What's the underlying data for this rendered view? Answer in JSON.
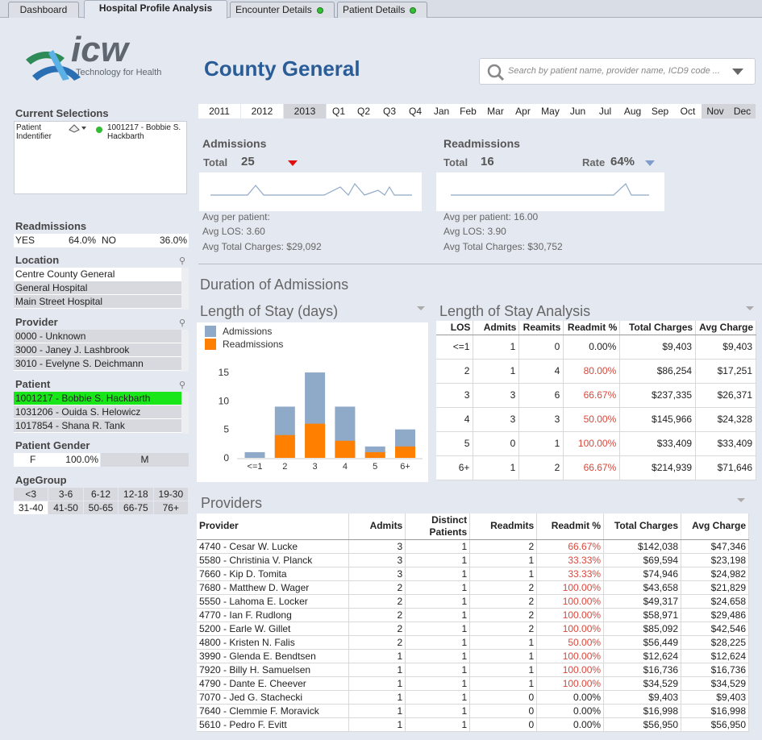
{
  "tabs": [
    {
      "label": "Dashboard",
      "dot": false
    },
    {
      "label": "Hospital Profile Analysis",
      "dot": false,
      "active": true
    },
    {
      "label": "Encounter Details",
      "dot": true
    },
    {
      "label": "Patient Details",
      "dot": true
    }
  ],
  "logo": {
    "brand": "icw",
    "tagline": "Technology for Health"
  },
  "title": "County General",
  "search": {
    "placeholder": "Search by patient name, provider name, ICD9 code ..."
  },
  "current_selections": {
    "label": "Current Selections",
    "field": "Patient Indentifier",
    "value": "1001217 - Bobbie S. Hackbarth"
  },
  "readmissions_filter": {
    "label": "Readmissions",
    "yes": "YES",
    "yes_pct": "64.0%",
    "no": "NO",
    "no_pct": "36.0%"
  },
  "location": {
    "label": "Location",
    "items": [
      "Centre County General",
      "General Hospital",
      "Main Street Hospital"
    ]
  },
  "provider": {
    "label": "Provider",
    "items": [
      "0000 - Unknown",
      "3000 - Janey J. Lashbrook",
      "3010 - Evelyne S. Deichmann"
    ]
  },
  "patient": {
    "label": "Patient",
    "items": [
      "1001217 - Bobbie S. Hackbarth",
      "1031206 - Ouida S. Helowicz",
      "1017854 - Shana R. Tank"
    ]
  },
  "gender": {
    "label": "Patient Gender",
    "f": "F",
    "f_pct": "100.0%",
    "m": "M"
  },
  "agegroup": {
    "label": "AgeGroup",
    "row1": [
      "<3",
      "3-6",
      "6-12",
      "12-18",
      "19-30"
    ],
    "row2": [
      "31-40",
      "41-50",
      "50-65",
      "66-75",
      "76+"
    ]
  },
  "years": [
    "2011",
    "2012",
    "2013"
  ],
  "months": [
    "Q1",
    "Q2",
    "Q3",
    "Q4",
    "Jan",
    "Feb",
    "Mar",
    "Apr",
    "May",
    "Jun",
    "Jul",
    "Aug",
    "Sep",
    "Oct",
    "Nov",
    "Dec"
  ],
  "admissions": {
    "title": "Admissions",
    "total_label": "Total",
    "total": "25",
    "avg_per_patient": "Avg per patient:",
    "avg_los": "Avg LOS: 3.60",
    "avg_charges": "Avg Total Charges: $29,092"
  },
  "readmissions": {
    "title": "Readmissions",
    "total_label": "Total",
    "total": "16",
    "rate_label": "Rate",
    "rate": "64%",
    "avg_per_patient": "Avg per patient: 16.00",
    "avg_los": "Avg LOS: 3.90",
    "avg_charges": "Avg Total Charges: $30,752"
  },
  "duration_title": "Duration of Admissions",
  "los_chart_title": "Length of Stay (days)",
  "los_analysis_title": "Length of Stay Analysis",
  "chart_data": {
    "type": "bar",
    "categories": [
      "<=1",
      "2",
      "3",
      "4",
      "5",
      "6+"
    ],
    "series": [
      {
        "name": "Admissions",
        "values": [
          1,
          5,
          9,
          6,
          1,
          3
        ],
        "color": "#8fa9c8"
      },
      {
        "name": "Readmissions",
        "values": [
          0,
          4,
          6,
          3,
          1,
          2
        ],
        "color": "#ff8000"
      }
    ],
    "stacked": true,
    "ylim": [
      0,
      16
    ],
    "yticks": [
      0,
      5,
      10,
      15
    ],
    "legend": "top-left",
    "grid": false
  },
  "los_table": {
    "headers": [
      "LOS",
      "Admits",
      "Reamits",
      "Readmit %",
      "Total Charges",
      "Avg Charge"
    ],
    "rows": [
      [
        "<=1",
        "1",
        "0",
        "0.00%",
        "$9,403",
        "$9,403"
      ],
      [
        "2",
        "1",
        "4",
        "80.00%",
        "$86,254",
        "$17,251"
      ],
      [
        "3",
        "3",
        "6",
        "66.67%",
        "$237,335",
        "$26,371"
      ],
      [
        "4",
        "3",
        "3",
        "50.00%",
        "$145,966",
        "$24,328"
      ],
      [
        "5",
        "0",
        "1",
        "100.00%",
        "$33,409",
        "$33,409"
      ],
      [
        "6+",
        "1",
        "2",
        "66.67%",
        "$214,939",
        "$71,646"
      ]
    ]
  },
  "providers_title": "Providers",
  "providers_table": {
    "headers": [
      "Provider",
      "Admits",
      "Distinct Patients",
      "Readmits",
      "Readmit %",
      "Total Charges",
      "Avg Charge"
    ],
    "rows": [
      [
        "4740 - Cesar W. Lucke",
        "3",
        "1",
        "2",
        "66.67%",
        "$142,038",
        "$47,346"
      ],
      [
        "5580 - Christinia V. Planck",
        "3",
        "1",
        "1",
        "33.33%",
        "$69,594",
        "$23,198"
      ],
      [
        "7660 - Kip D. Tomita",
        "3",
        "1",
        "1",
        "33.33%",
        "$74,946",
        "$24,982"
      ],
      [
        "7680 - Matthew D. Wager",
        "2",
        "1",
        "2",
        "100.00%",
        "$43,658",
        "$21,829"
      ],
      [
        "5550 - Lahoma E. Locker",
        "2",
        "1",
        "2",
        "100.00%",
        "$49,317",
        "$24,658"
      ],
      [
        "4770 - Ian F. Rudlong",
        "2",
        "1",
        "2",
        "100.00%",
        "$58,971",
        "$29,486"
      ],
      [
        "5200 - Earle W. Gillet",
        "2",
        "1",
        "2",
        "100.00%",
        "$85,092",
        "$42,546"
      ],
      [
        "4800 - Kristen N. Falis",
        "2",
        "1",
        "1",
        "50.00%",
        "$56,449",
        "$28,225"
      ],
      [
        "3990 - Glenda E. Bendtsen",
        "1",
        "1",
        "1",
        "100.00%",
        "$12,624",
        "$12,624"
      ],
      [
        "7920 - Billy H. Samuelsen",
        "1",
        "1",
        "1",
        "100.00%",
        "$16,736",
        "$16,736"
      ],
      [
        "4790 - Dante E. Cheever",
        "1",
        "1",
        "1",
        "100.00%",
        "$34,529",
        "$34,529"
      ],
      [
        "7070 - Jed G. Stachecki",
        "1",
        "1",
        "0",
        "0.00%",
        "$9,403",
        "$9,403"
      ],
      [
        "7640 - Clemmie F. Moravick",
        "1",
        "1",
        "0",
        "0.00%",
        "$16,998",
        "$16,998"
      ],
      [
        "5610 - Pedro F. Evitt",
        "1",
        "1",
        "0",
        "0.00%",
        "$56,950",
        "$56,950"
      ]
    ]
  }
}
